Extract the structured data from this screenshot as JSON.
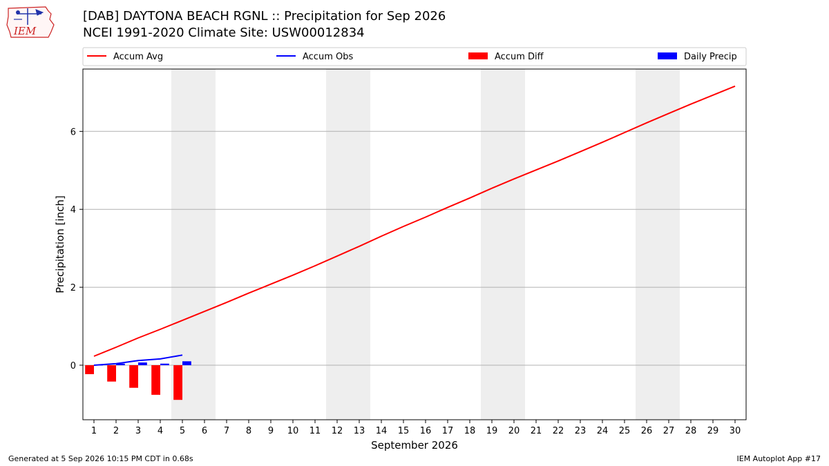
{
  "header": {
    "title_line1": "[DAB] DAYTONA BEACH RGNL :: Precipitation for Sep 2026",
    "title_line2": "NCEI 1991-2020 Climate Site: USW00012834",
    "logo_text": "IEM"
  },
  "footer": {
    "generated": "Generated at 5 Sep 2026 10:15 PM CDT in 0.68s",
    "app": "IEM Autoplot App #17"
  },
  "chart_data": {
    "type": "line",
    "xlabel": "September 2026",
    "ylabel": "Precipitation [inch]",
    "x": [
      1,
      2,
      3,
      4,
      5,
      6,
      7,
      8,
      9,
      10,
      11,
      12,
      13,
      14,
      15,
      16,
      17,
      18,
      19,
      20,
      21,
      22,
      23,
      24,
      25,
      26,
      27,
      28,
      29,
      30
    ],
    "xlim": [
      0.5,
      30.5
    ],
    "ylim": [
      -1.4,
      7.6
    ],
    "yticks": [
      0,
      2,
      4,
      6
    ],
    "grid": "y",
    "legend": "top",
    "weekend_bands": [
      [
        5,
        6
      ],
      [
        12,
        13
      ],
      [
        19,
        20
      ],
      [
        26,
        27
      ]
    ],
    "colors": {
      "accum_avg": "#ff0000",
      "accum_obs": "#0000ff",
      "accum_diff": "#ff0000",
      "daily_precip": "#0000ff",
      "weekend_band": "#eeeeee",
      "grid": "#b0b0b0"
    },
    "series": [
      {
        "name": "Accum Avg",
        "kind": "line",
        "x": [
          1,
          2,
          3,
          4,
          5,
          6,
          7,
          8,
          9,
          10,
          11,
          12,
          13,
          14,
          15,
          16,
          17,
          18,
          19,
          20,
          21,
          22,
          23,
          24,
          25,
          26,
          27,
          28,
          29,
          30
        ],
        "values": [
          0.23,
          0.46,
          0.7,
          0.92,
          1.15,
          1.38,
          1.61,
          1.85,
          2.08,
          2.31,
          2.55,
          2.8,
          3.05,
          3.31,
          3.56,
          3.8,
          4.05,
          4.29,
          4.54,
          4.78,
          5.01,
          5.24,
          5.48,
          5.72,
          5.97,
          6.22,
          6.46,
          6.7,
          6.93,
          7.16
        ]
      },
      {
        "name": "Accum Obs",
        "kind": "line",
        "x": [
          1,
          2,
          3,
          4,
          5
        ],
        "values": [
          0.0,
          0.04,
          0.12,
          0.16,
          0.26
        ]
      },
      {
        "name": "Accum Diff",
        "kind": "bar",
        "x": [
          1,
          2,
          3,
          4,
          5
        ],
        "values": [
          -0.23,
          -0.42,
          -0.58,
          -0.76,
          -0.89
        ]
      },
      {
        "name": "Daily Precip",
        "kind": "bar",
        "x": [
          1,
          2,
          3,
          4,
          5
        ],
        "values": [
          0.0,
          0.04,
          0.07,
          0.04,
          0.1
        ]
      }
    ]
  }
}
